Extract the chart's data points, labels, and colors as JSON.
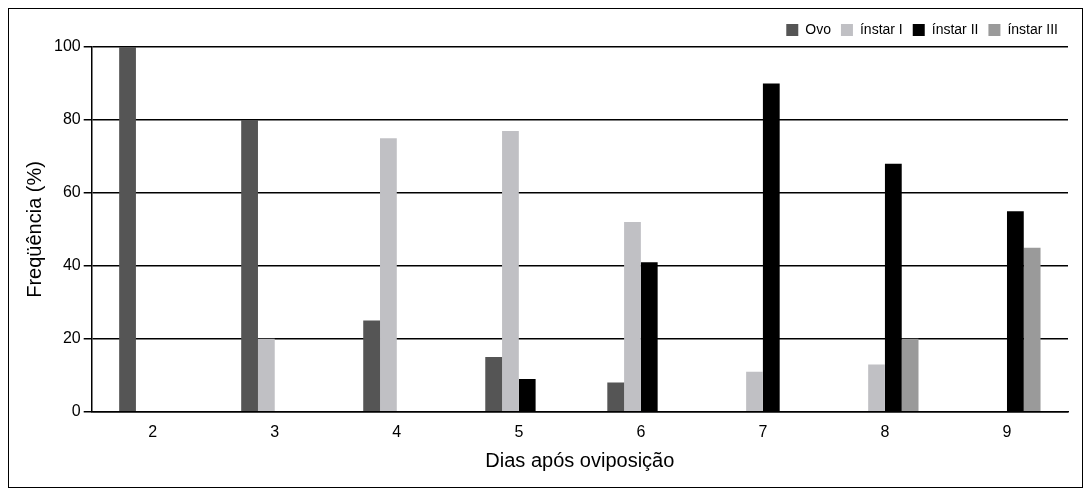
{
  "chart_data": {
    "type": "bar",
    "xlabel": "Dias após oviposição",
    "ylabel": "Freqüência (%)",
    "categories": [
      "2",
      "3",
      "4",
      "5",
      "6",
      "7",
      "8",
      "9"
    ],
    "series": [
      {
        "name": "Ovo",
        "color": "#555555",
        "values": [
          100,
          80,
          25,
          15,
          8,
          null,
          null,
          null
        ]
      },
      {
        "name": "ínstar I",
        "color": "#c0c0c4",
        "values": [
          null,
          20,
          75,
          77,
          52,
          11,
          13,
          null
        ]
      },
      {
        "name": "ínstar II",
        "color": "#000000",
        "values": [
          null,
          null,
          null,
          9,
          41,
          90,
          68,
          55
        ]
      },
      {
        "name": "ínstar III",
        "color": "#9a9a9a",
        "values": [
          null,
          null,
          null,
          null,
          null,
          null,
          20,
          45
        ]
      }
    ],
    "ylim": [
      0,
      100
    ],
    "yticks": [
      0,
      20,
      40,
      60,
      80,
      100
    ],
    "grid": "y",
    "legend": "top right"
  }
}
